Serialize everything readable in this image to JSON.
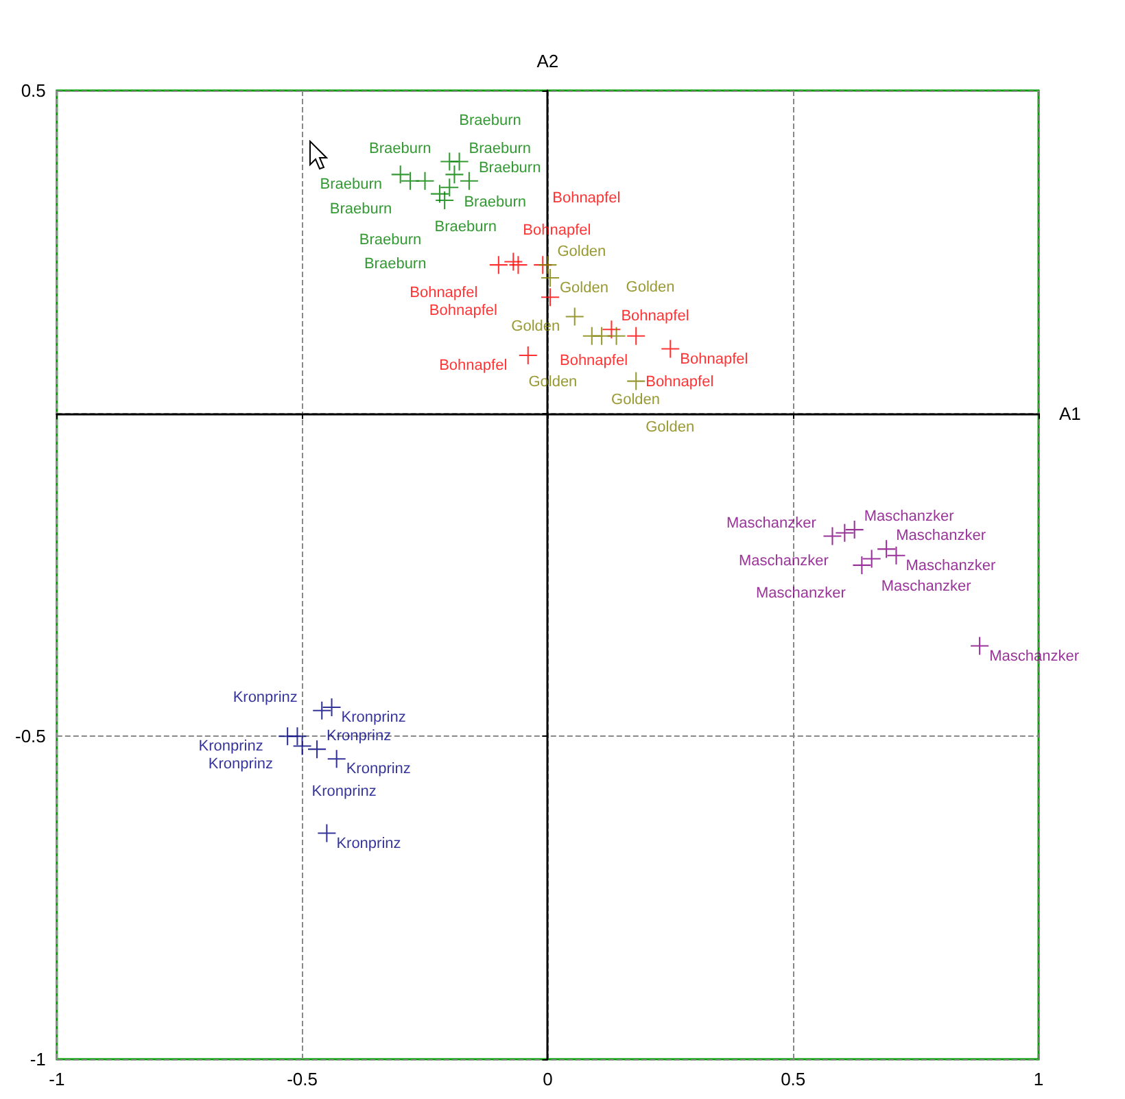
{
  "chart_data": {
    "type": "scatter",
    "xlabel": "A1",
    "ylabel": "A2",
    "xlim": [
      -1,
      1
    ],
    "ylim": [
      -1,
      0.5
    ],
    "xticks": [
      -1,
      -0.5,
      0,
      0.5,
      1
    ],
    "yticks": [
      -1,
      -0.5,
      {
        "value": 0,
        "label": null
      },
      0.5
    ],
    "grid": true,
    "legend": false,
    "marker": "cross",
    "series": [
      {
        "name": "Braeburn",
        "color": "#008000",
        "x": [
          -0.3,
          -0.28,
          -0.25,
          -0.2,
          -0.18,
          -0.19,
          -0.22,
          -0.2,
          -0.16,
          -0.21
        ],
        "values": [
          0.37,
          0.36,
          0.36,
          0.39,
          0.39,
          0.37,
          0.34,
          0.35,
          0.36,
          0.33
        ]
      },
      {
        "name": "Bohnapfel",
        "color": "#ff0000",
        "x": [
          -0.1,
          -0.07,
          -0.06,
          -0.01,
          0.005,
          0.13,
          0.18,
          0.25,
          -0.04
        ],
        "values": [
          0.23,
          0.235,
          0.23,
          0.23,
          0.18,
          0.13,
          0.12,
          0.1,
          0.09
        ]
      },
      {
        "name": "Golden",
        "color": "#808000",
        "x": [
          0.0,
          0.005,
          0.055,
          0.09,
          0.11,
          0.14,
          0.18
        ],
        "values": [
          0.23,
          0.21,
          0.15,
          0.12,
          0.12,
          0.12,
          0.05
        ]
      },
      {
        "name": "Maschanzker",
        "color": "#800080",
        "x": [
          0.58,
          0.605,
          0.625,
          0.64,
          0.66,
          0.69,
          0.71,
          0.88
        ],
        "values": [
          -0.19,
          -0.185,
          -0.18,
          -0.235,
          -0.225,
          -0.21,
          -0.22,
          -0.36
        ]
      },
      {
        "name": "Kronprinz",
        "color": "#000080",
        "x": [
          -0.46,
          -0.44,
          -0.53,
          -0.51,
          -0.5,
          -0.47,
          -0.43,
          -0.45
        ],
        "values": [
          -0.46,
          -0.455,
          -0.5,
          -0.5,
          -0.515,
          -0.52,
          -0.535,
          -0.65
        ]
      }
    ]
  }
}
